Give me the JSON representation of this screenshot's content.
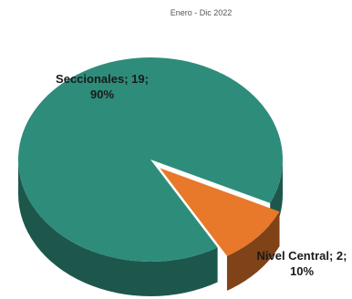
{
  "chart_data": {
    "type": "pie",
    "subtitle": "Enero - Dic  2022",
    "slices": [
      {
        "name": "Seccionales",
        "value": 19,
        "percent": "90%",
        "color": "#2e8c7a",
        "label_line1": "Seccionales; 19;",
        "label_line2": "90%"
      },
      {
        "name": "Nivel Central",
        "value": 2,
        "percent": "10%",
        "color": "#e8782a",
        "label_line1": "Nivel Central; 2;",
        "label_line2": "10%"
      }
    ],
    "style": "3d-exploded"
  }
}
